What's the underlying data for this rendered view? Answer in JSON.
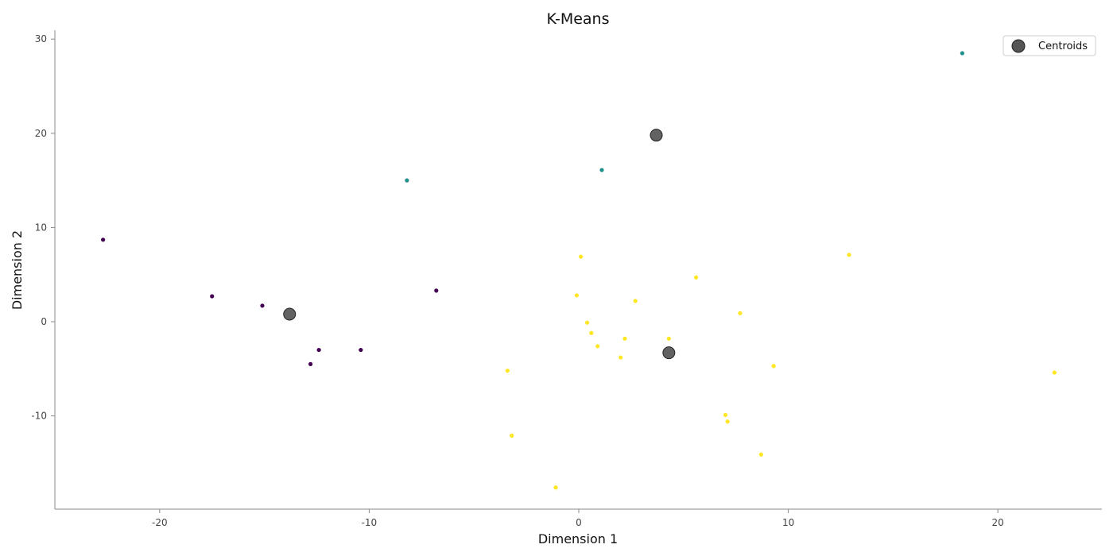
{
  "chart_data": {
    "type": "scatter",
    "title": "K-Means",
    "xlabel": "Dimension 1",
    "ylabel": "Dimension 2",
    "xlim": [
      -25,
      25
    ],
    "ylim": [
      -20,
      31
    ],
    "xticks": [
      -20,
      -10,
      0,
      10,
      20
    ],
    "yticks": [
      -10,
      0,
      10,
      20,
      30
    ],
    "grid": false,
    "legend": {
      "placement": "top-right",
      "entries": [
        "Centroids"
      ]
    },
    "cluster_colors": [
      "#440154",
      "#21908d",
      "#fde725"
    ],
    "centroid_color": "#555555",
    "series": [
      {
        "cluster": 0,
        "color": "#440154",
        "points": [
          [
            -22.7,
            8.7
          ],
          [
            -17.5,
            2.7
          ],
          [
            -15.1,
            1.7
          ],
          [
            -12.8,
            -4.5
          ],
          [
            -12.4,
            -3.0
          ],
          [
            -10.4,
            -3.0
          ],
          [
            -6.8,
            3.3
          ]
        ]
      },
      {
        "cluster": 1,
        "color": "#21908d",
        "points": [
          [
            -8.2,
            15.0
          ],
          [
            1.1,
            16.1
          ],
          [
            18.3,
            28.5
          ]
        ]
      },
      {
        "cluster": 2,
        "color": "#fde725",
        "points": [
          [
            -3.4,
            -5.2
          ],
          [
            -3.2,
            -12.1
          ],
          [
            -1.1,
            -17.6
          ],
          [
            -0.1,
            2.8
          ],
          [
            0.1,
            6.9
          ],
          [
            0.4,
            -0.1
          ],
          [
            0.6,
            -1.2
          ],
          [
            0.9,
            -2.6
          ],
          [
            2.0,
            -3.8
          ],
          [
            2.2,
            -1.8
          ],
          [
            2.7,
            2.2
          ],
          [
            4.3,
            -1.8
          ],
          [
            5.6,
            4.7
          ],
          [
            7.0,
            -9.9
          ],
          [
            7.1,
            -10.6
          ],
          [
            7.7,
            0.9
          ],
          [
            8.7,
            -14.1
          ],
          [
            9.3,
            -4.7
          ],
          [
            12.9,
            7.1
          ],
          [
            22.7,
            -5.4
          ]
        ]
      }
    ],
    "centroids": {
      "name": "Centroids",
      "points": [
        [
          -13.8,
          0.8
        ],
        [
          3.7,
          19.8
        ],
        [
          4.3,
          -3.3
        ]
      ]
    }
  }
}
